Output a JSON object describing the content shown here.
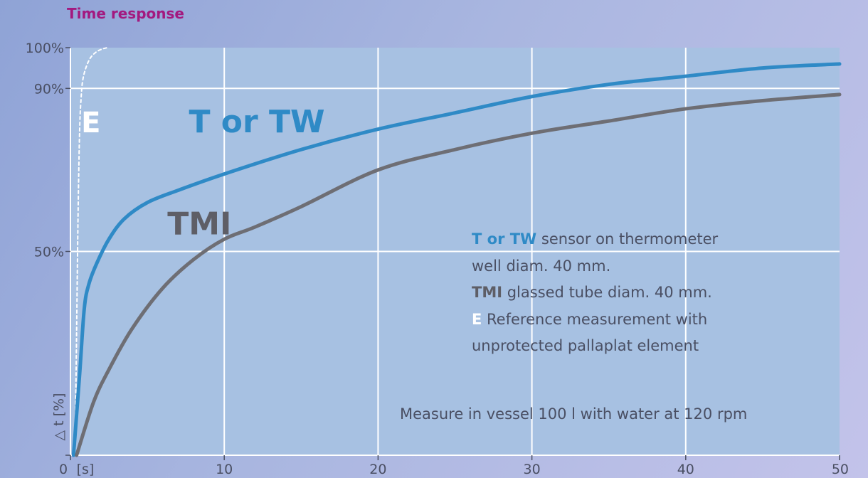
{
  "title": "Time response",
  "chart_data": {
    "type": "line",
    "title": "Time response",
    "xlabel": "[s]",
    "ylabel": "△ t [%]",
    "xlim": [
      0,
      50
    ],
    "ylim": [
      0,
      100
    ],
    "x_ticks": [
      {
        "value": 0,
        "label": "0"
      },
      {
        "value": 10,
        "label": "10"
      },
      {
        "value": 20,
        "label": "20"
      },
      {
        "value": 30,
        "label": "30"
      },
      {
        "value": 40,
        "label": "40"
      },
      {
        "value": 50,
        "label": "50"
      }
    ],
    "y_ticks": [
      {
        "value": 50,
        "label": "50%"
      },
      {
        "value": 90,
        "label": "90%"
      },
      {
        "value": 100,
        "label": "100%"
      }
    ],
    "grid": true,
    "series": [
      {
        "name": "E",
        "color": "#ffffff",
        "dashed": true,
        "x": [
          0.3,
          0.4,
          0.5,
          0.6,
          0.7,
          0.8,
          1.0,
          1.3,
          1.7,
          2.1,
          2.4
        ],
        "y": [
          0,
          30,
          60,
          80,
          88,
          92,
          95,
          97.5,
          99,
          99.7,
          100
        ]
      },
      {
        "name": "T or TW",
        "color": "#2f8ac6",
        "x": [
          0.2,
          0.6,
          0.9,
          1.2,
          1.7,
          2.5,
          3.5,
          5,
          7,
          10,
          15,
          20,
          25,
          30,
          35,
          40,
          45,
          50
        ],
        "y": [
          0,
          20,
          36,
          42,
          47,
          53,
          58,
          62,
          65,
          69,
          75,
          80,
          84,
          88,
          91,
          93,
          95,
          96
        ]
      },
      {
        "name": "TMI",
        "color": "#6e6e74",
        "x": [
          0.4,
          1.5,
          2.5,
          4,
          6,
          8,
          10,
          12,
          15,
          20,
          25,
          30,
          35,
          40,
          45,
          50
        ],
        "y": [
          0,
          13,
          21,
          31,
          41,
          48,
          53,
          56,
          61,
          70,
          75,
          79,
          82,
          85,
          87,
          88.5
        ]
      }
    ],
    "annotations": {
      "series_tags": [
        {
          "text": "E",
          "x": 0.7,
          "y": 82,
          "color": "#ffffff"
        },
        {
          "text": "T or TW",
          "x": 7.7,
          "y": 82,
          "color": "#2f8ac6"
        },
        {
          "text": "TMI",
          "x": 6.3,
          "y": 57,
          "color": "#5e5e66"
        }
      ],
      "legend": [
        {
          "key": "T or TW",
          "text": " sensor on thermometer"
        },
        {
          "key": "",
          "text": "well diam. 40 mm."
        },
        {
          "key": "TMI",
          "text": " glassed tube diam. 40 mm."
        },
        {
          "key": "E",
          "text": " Reference measurement with"
        },
        {
          "key": "",
          "text": "unprotected pallaplat element"
        }
      ],
      "note": "Measure in vessel 100 l with water at 120 rpm"
    }
  }
}
